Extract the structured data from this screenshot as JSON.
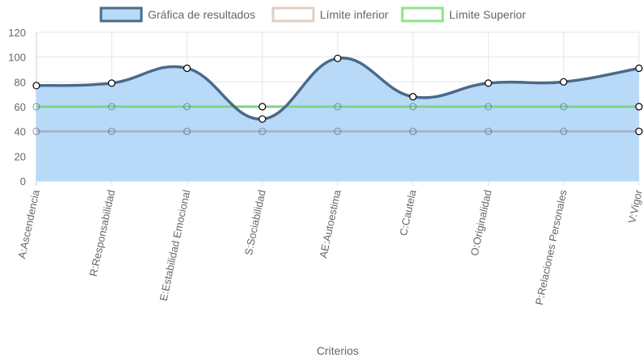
{
  "chart_data": {
    "type": "line",
    "xlabel": "Criterios",
    "ylabel": "",
    "ylim": [
      0,
      120
    ],
    "yticks": [
      0,
      20,
      40,
      60,
      80,
      100,
      120
    ],
    "grid": true,
    "legend_position": "top",
    "categories": [
      "A:Ascendencia",
      "R:Responsabilidad",
      "E:Estabilidad Emocional",
      "S:Sociabilidad",
      "AE:Autoestima",
      "C:Cautela",
      "O:Originalidad",
      "P:Relaciones Personales",
      "V:Vigor"
    ],
    "series": [
      {
        "name": "Gráfica de resultados",
        "values": [
          77,
          79,
          91,
          50,
          99,
          68,
          79,
          80,
          91
        ],
        "line_color": "#4a6a8a",
        "fill_color": "#b8daf8",
        "filled": true
      },
      {
        "name": "Límite inferior",
        "values": [
          40,
          40,
          40,
          40,
          40,
          40,
          40,
          40,
          40
        ],
        "line_color": "#a8b4c8",
        "legend_color": "#e0cfc4",
        "filled": false
      },
      {
        "name": "Límite Superior",
        "values": [
          60,
          60,
          60,
          60,
          60,
          60,
          60,
          60,
          60
        ],
        "line_color": "#7fd18a",
        "legend_color": "#90e08a",
        "filled": false
      }
    ]
  }
}
